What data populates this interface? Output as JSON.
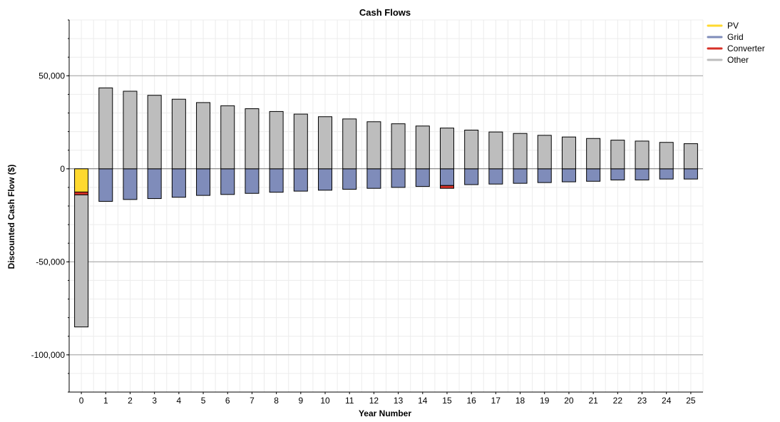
{
  "chart_data": {
    "type": "bar",
    "stacked": true,
    "title": "Cash Flows",
    "xlabel": "Year Number",
    "ylabel": "Discounted Cash Flow ($)",
    "ylim": [
      -120000,
      80000
    ],
    "yticks": [
      50000,
      0,
      -50000,
      -100000
    ],
    "ytick_labels": [
      "50,000",
      "0",
      "-50,000",
      "-100,000"
    ],
    "grid": true,
    "legend_position": "top-right",
    "categories": [
      "0",
      "1",
      "2",
      "3",
      "4",
      "5",
      "6",
      "7",
      "8",
      "9",
      "10",
      "11",
      "12",
      "13",
      "14",
      "15",
      "16",
      "17",
      "18",
      "19",
      "20",
      "21",
      "22",
      "23",
      "24",
      "25"
    ],
    "series": [
      {
        "name": "PV",
        "color": "#ffd92f",
        "values": [
          -12500,
          0,
          0,
          0,
          0,
          0,
          0,
          0,
          0,
          0,
          0,
          0,
          0,
          0,
          0,
          0,
          0,
          0,
          0,
          0,
          0,
          0,
          0,
          0,
          0,
          0
        ]
      },
      {
        "name": "Grid",
        "color": "#7f8cba",
        "values": [
          0,
          -17500,
          -16500,
          -16000,
          -15300,
          -14300,
          -13800,
          -13200,
          -12600,
          -12000,
          -11500,
          -11000,
          -10500,
          -10000,
          -9500,
          -9000,
          -8500,
          -8200,
          -7800,
          -7400,
          -7000,
          -6700,
          -6000,
          -6000,
          -5500,
          -5500
        ]
      },
      {
        "name": "Converter",
        "color": "#d73027",
        "values": [
          -1500,
          0,
          0,
          0,
          0,
          0,
          0,
          0,
          0,
          0,
          0,
          0,
          0,
          0,
          0,
          -1500,
          0,
          0,
          0,
          0,
          0,
          0,
          0,
          0,
          0,
          0
        ]
      },
      {
        "name": "Other",
        "color": "#bdbdbd",
        "values": [
          -71000,
          43500,
          41700,
          39500,
          37400,
          35600,
          33900,
          32300,
          30800,
          29400,
          28000,
          26800,
          25300,
          24200,
          23000,
          21900,
          20800,
          19800,
          19000,
          18000,
          17100,
          16300,
          15400,
          14900,
          14200,
          13500
        ]
      }
    ]
  }
}
